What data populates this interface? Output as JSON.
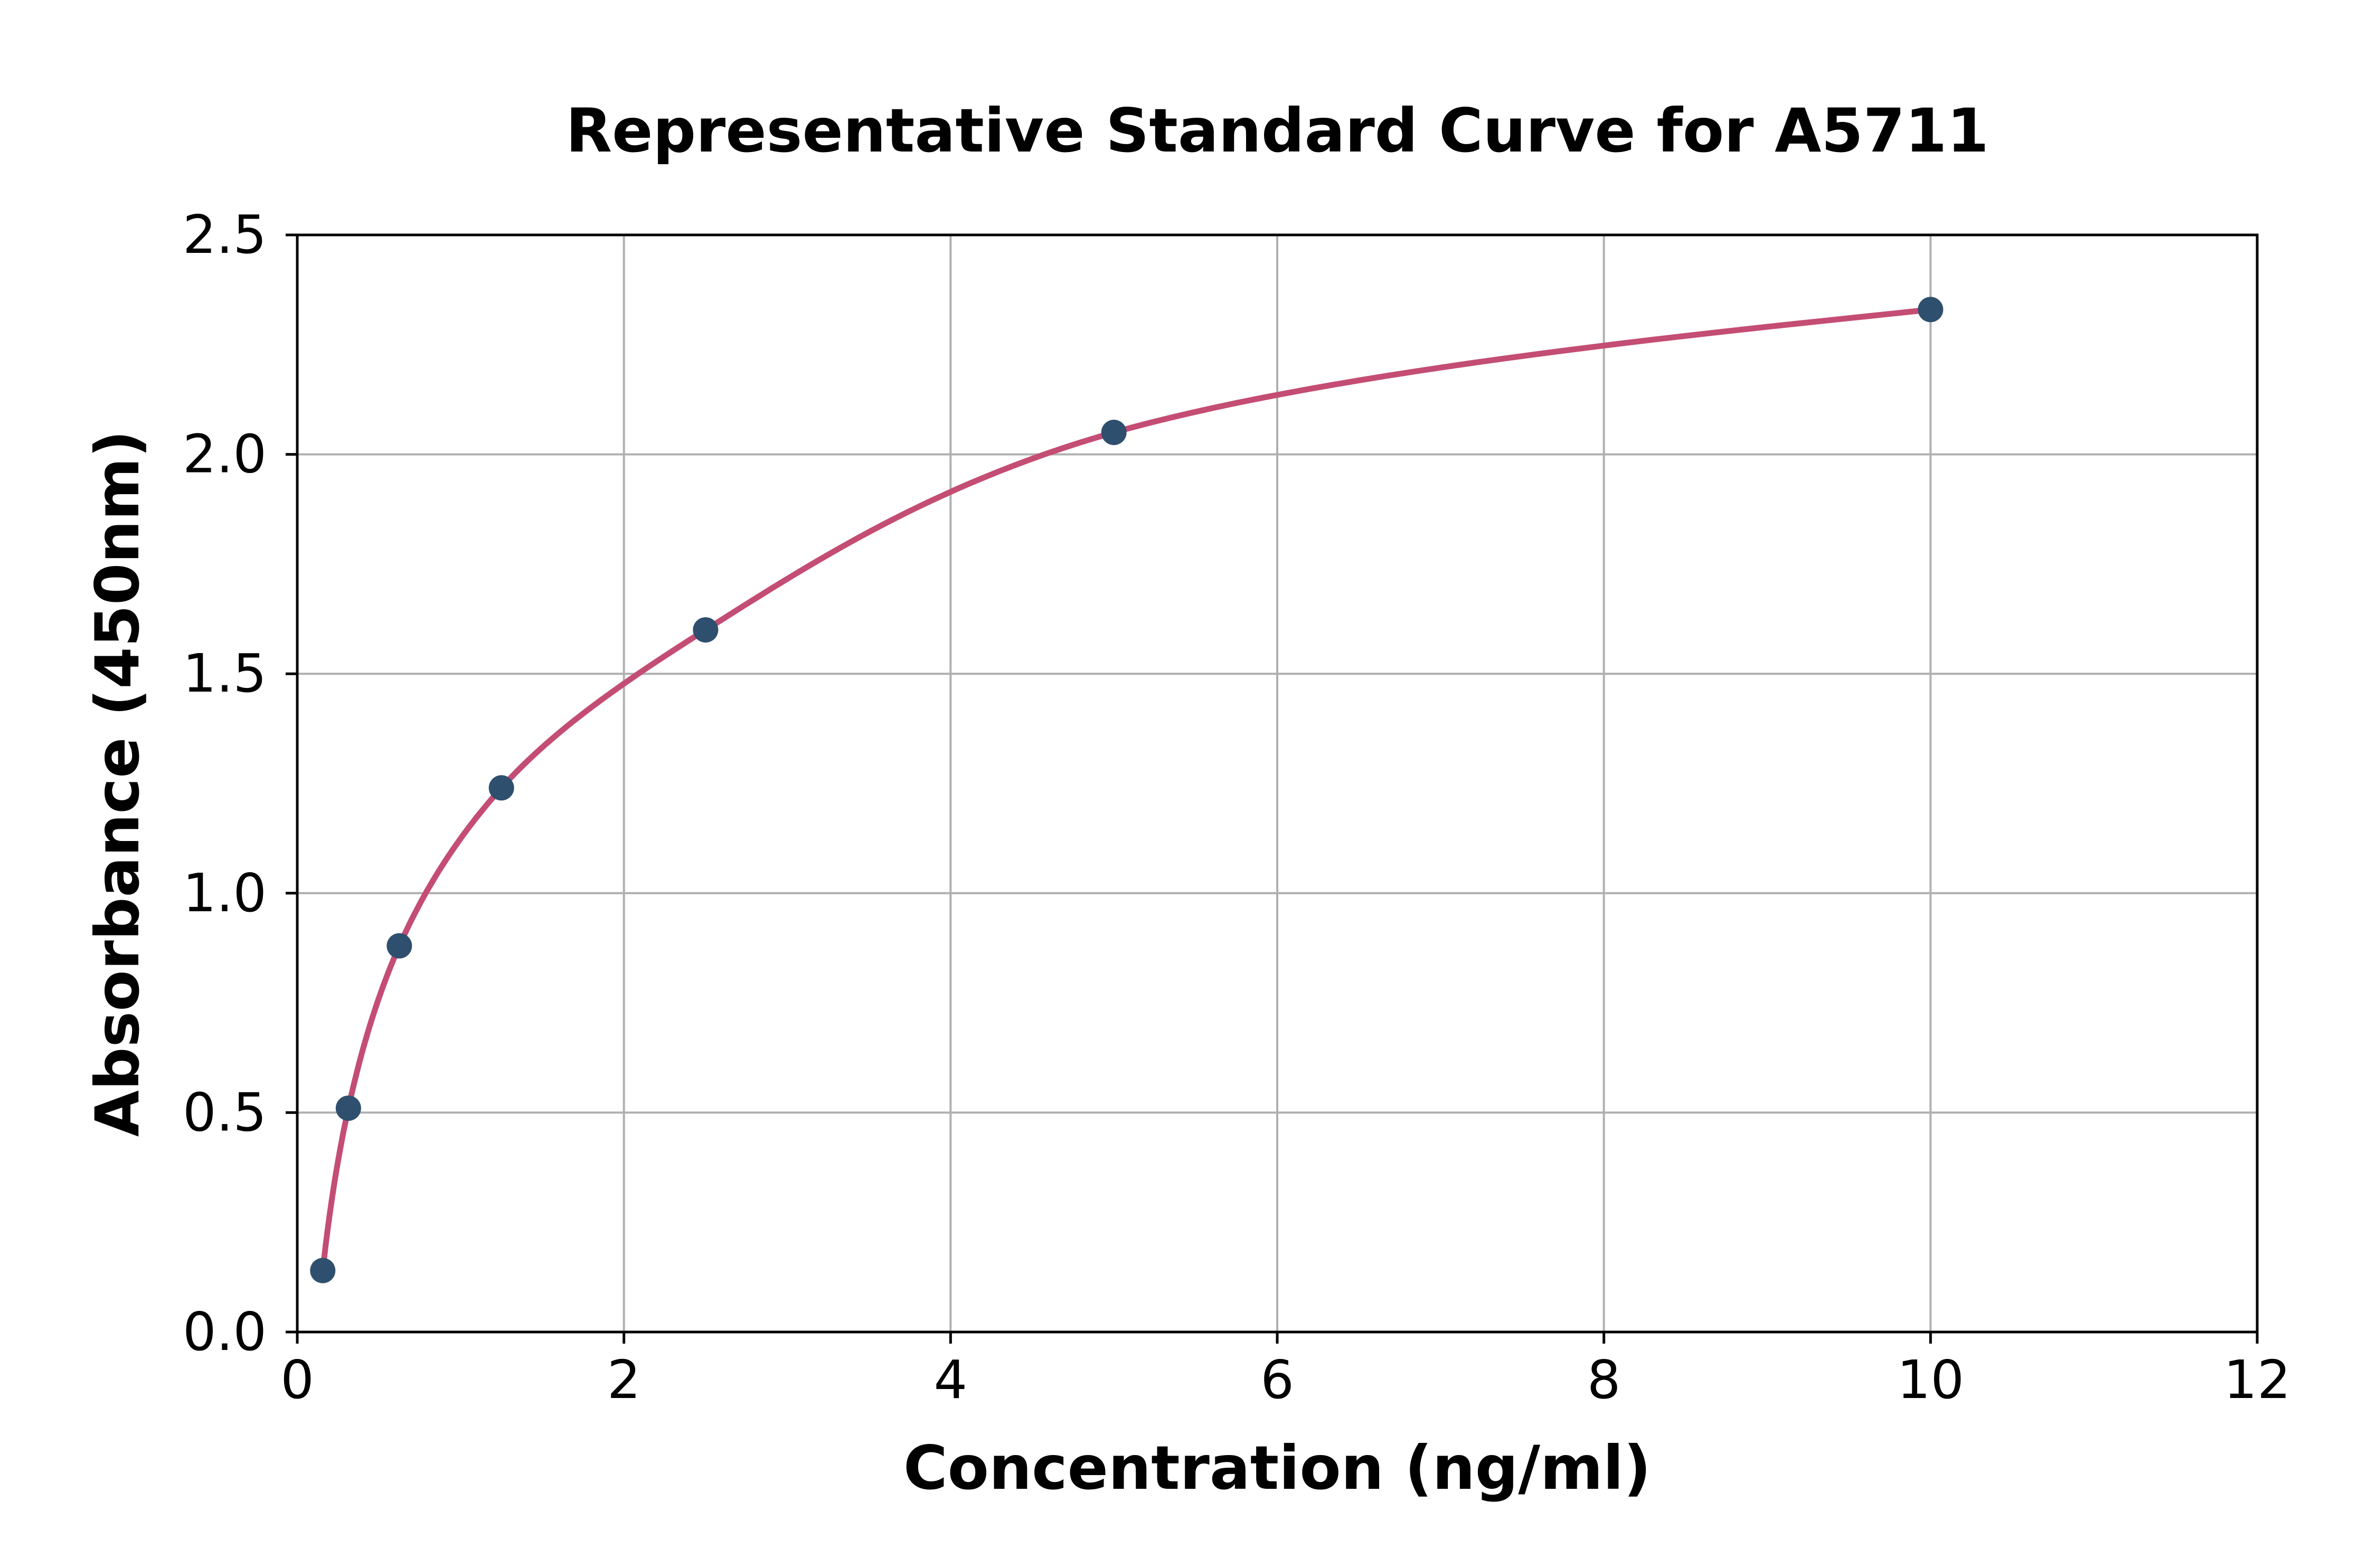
{
  "chart_data": {
    "type": "scatter",
    "title": "Representative Standard Curve for A5711",
    "xlabel": "Concentration (ng/ml)",
    "ylabel": "Absorbance (450nm)",
    "series": [
      {
        "name": "standard",
        "x": [
          0.156,
          0.313,
          0.625,
          1.25,
          2.5,
          5,
          10
        ],
        "y": [
          0.14,
          0.51,
          0.88,
          1.24,
          1.6,
          2.05,
          2.33
        ]
      }
    ],
    "curve": "smooth fitted standard curve drawn through the data points from x=0.156 to x=10",
    "xlim": [
      0,
      12
    ],
    "ylim": [
      0,
      2.5
    ],
    "x_tick_labels": [
      "0",
      "2",
      "4",
      "6",
      "8",
      "10",
      "12"
    ],
    "y_tick_labels": [
      "0.0",
      "0.5",
      "1.0",
      "1.5",
      "2.0",
      "2.5"
    ],
    "grid": true,
    "legend_position": "none",
    "colors": {
      "curve": "#c44d74",
      "marker": "#2f4f6e",
      "grid": "#b0b0b0",
      "axis": "#000000",
      "background": "#ffffff"
    }
  }
}
